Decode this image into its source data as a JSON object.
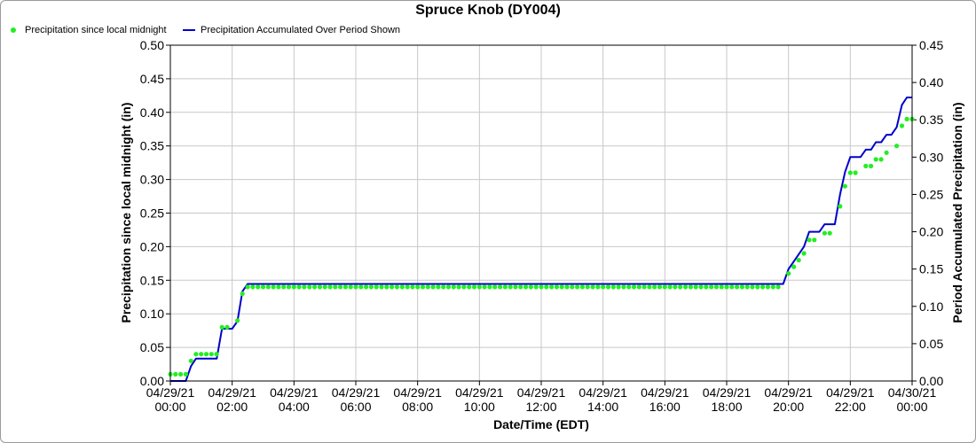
{
  "window": {
    "title": "Spruce Knob (DY004)"
  },
  "legend": {
    "entries": [
      {
        "label": "Precipitation since local midnight",
        "color": "#22ee22",
        "icon": "green-dot-icon"
      },
      {
        "label": "Precipitation Accumulated Over Period Shown",
        "color": "#0000cc",
        "icon": "blue-line-icon"
      }
    ]
  },
  "chart_data": {
    "type": "line",
    "title": "Spruce Knob (DY004)",
    "xlabel": "Date/Time (EDT)",
    "ylabel": "Precipitation since local midnight (in)",
    "y2label": "Period Accumulated Precipitation (in)",
    "xlim": [
      "2021-04-29 00:00",
      "2021-04-30 00:00"
    ],
    "ylim": [
      0,
      0.5
    ],
    "y2lim": [
      0,
      0.45
    ],
    "grid": true,
    "legend_position": "top-left",
    "x_ticks": [
      {
        "date": "04/29/21",
        "time": "00:00",
        "hour": 0
      },
      {
        "date": "04/29/21",
        "time": "02:00",
        "hour": 2
      },
      {
        "date": "04/29/21",
        "time": "04:00",
        "hour": 4
      },
      {
        "date": "04/29/21",
        "time": "06:00",
        "hour": 6
      },
      {
        "date": "04/29/21",
        "time": "08:00",
        "hour": 8
      },
      {
        "date": "04/29/21",
        "time": "10:00",
        "hour": 10
      },
      {
        "date": "04/29/21",
        "time": "12:00",
        "hour": 12
      },
      {
        "date": "04/29/21",
        "time": "14:00",
        "hour": 14
      },
      {
        "date": "04/29/21",
        "time": "16:00",
        "hour": 16
      },
      {
        "date": "04/29/21",
        "time": "18:00",
        "hour": 18
      },
      {
        "date": "04/29/21",
        "time": "20:00",
        "hour": 20
      },
      {
        "date": "04/29/21",
        "time": "22:00",
        "hour": 22
      },
      {
        "date": "04/30/21",
        "time": "00:00",
        "hour": 24
      }
    ],
    "y_ticks": [
      "0.00",
      "0.05",
      "0.10",
      "0.15",
      "0.20",
      "0.25",
      "0.30",
      "0.35",
      "0.40",
      "0.45",
      "0.50"
    ],
    "y2_ticks": [
      "0.00",
      "0.05",
      "0.10",
      "0.15",
      "0.20",
      "0.25",
      "0.30",
      "0.35",
      "0.40",
      "0.45"
    ],
    "series": [
      {
        "name": "Precipitation since local midnight",
        "type": "scatter",
        "axis": "left",
        "color": "#22ee22",
        "interval_minutes": 10,
        "segments": [
          {
            "start_hour": 0.0,
            "end_hour": 0.5,
            "value": 0.01
          },
          {
            "start_hour": 0.67,
            "end_hour": 0.67,
            "value": 0.03
          },
          {
            "start_hour": 0.83,
            "end_hour": 1.5,
            "value": 0.04
          },
          {
            "start_hour": 1.67,
            "end_hour": 2.0,
            "value": 0.08
          },
          {
            "start_hour": 2.17,
            "end_hour": 2.17,
            "value": 0.09
          },
          {
            "start_hour": 2.33,
            "end_hour": 2.33,
            "value": 0.13
          },
          {
            "start_hour": 2.5,
            "end_hour": 19.83,
            "value": 0.14
          },
          {
            "start_hour": 20.0,
            "end_hour": 20.0,
            "value": 0.16
          },
          {
            "start_hour": 20.17,
            "end_hour": 20.17,
            "value": 0.17
          },
          {
            "start_hour": 20.33,
            "end_hour": 20.33,
            "value": 0.18
          },
          {
            "start_hour": 20.5,
            "end_hour": 20.5,
            "value": 0.19
          },
          {
            "start_hour": 20.67,
            "end_hour": 21.0,
            "value": 0.21
          },
          {
            "start_hour": 21.17,
            "end_hour": 21.5,
            "value": 0.22
          },
          {
            "start_hour": 21.67,
            "end_hour": 21.67,
            "value": 0.26
          },
          {
            "start_hour": 21.83,
            "end_hour": 21.83,
            "value": 0.29
          },
          {
            "start_hour": 22.0,
            "end_hour": 22.33,
            "value": 0.31
          },
          {
            "start_hour": 22.5,
            "end_hour": 22.67,
            "value": 0.32
          },
          {
            "start_hour": 22.83,
            "end_hour": 23.0,
            "value": 0.33
          },
          {
            "start_hour": 23.17,
            "end_hour": 23.33,
            "value": 0.34
          },
          {
            "start_hour": 23.5,
            "end_hour": 23.5,
            "value": 0.35
          },
          {
            "start_hour": 23.67,
            "end_hour": 23.67,
            "value": 0.38
          },
          {
            "start_hour": 23.83,
            "end_hour": 24.0,
            "value": 0.39
          }
        ]
      },
      {
        "name": "Precipitation Accumulated Over Period Shown",
        "type": "line",
        "axis": "right",
        "color": "#0000cc",
        "points": [
          [
            0.0,
            0.0
          ],
          [
            0.5,
            0.0
          ],
          [
            0.67,
            0.02
          ],
          [
            0.83,
            0.03
          ],
          [
            1.5,
            0.03
          ],
          [
            1.67,
            0.07
          ],
          [
            2.0,
            0.07
          ],
          [
            2.17,
            0.08
          ],
          [
            2.33,
            0.12
          ],
          [
            2.5,
            0.13
          ],
          [
            19.83,
            0.13
          ],
          [
            20.0,
            0.15
          ],
          [
            20.17,
            0.16
          ],
          [
            20.5,
            0.18
          ],
          [
            20.67,
            0.2
          ],
          [
            21.0,
            0.2
          ],
          [
            21.17,
            0.21
          ],
          [
            21.5,
            0.21
          ],
          [
            21.67,
            0.25
          ],
          [
            21.83,
            0.28
          ],
          [
            22.0,
            0.3
          ],
          [
            22.33,
            0.3
          ],
          [
            22.5,
            0.31
          ],
          [
            22.67,
            0.31
          ],
          [
            22.83,
            0.32
          ],
          [
            23.0,
            0.32
          ],
          [
            23.17,
            0.33
          ],
          [
            23.33,
            0.33
          ],
          [
            23.5,
            0.34
          ],
          [
            23.67,
            0.37
          ],
          [
            23.83,
            0.38
          ],
          [
            24.0,
            0.38
          ]
        ]
      }
    ]
  }
}
